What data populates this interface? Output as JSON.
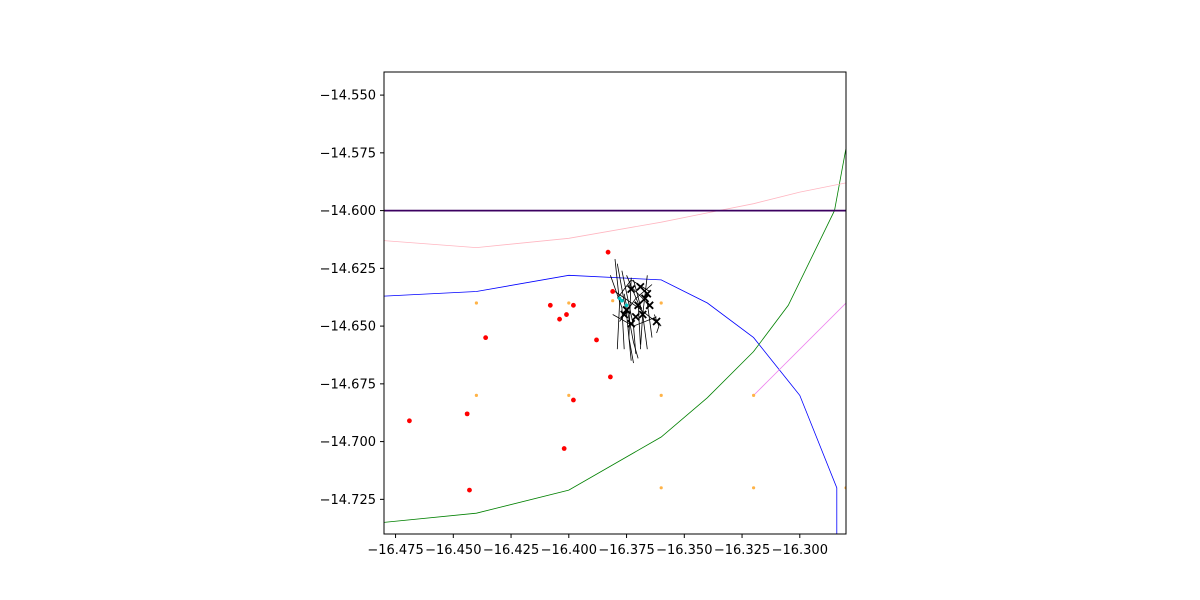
{
  "chart_data": {
    "type": "scatter",
    "title": "",
    "xlabel": "",
    "ylabel": "",
    "xlim": [
      -16.48,
      -16.28
    ],
    "ylim": [
      -14.74,
      -14.54
    ],
    "grid": false,
    "x_ticks": [
      -16.475,
      -16.45,
      -16.425,
      -16.4,
      -16.375,
      -16.35,
      -16.325,
      -16.3
    ],
    "x_tick_labels": [
      "−16.475",
      "−16.450",
      "−16.425",
      "−16.400",
      "−16.375",
      "−16.350",
      "−16.325",
      "−16.300"
    ],
    "y_ticks": [
      -14.55,
      -14.575,
      -14.6,
      -14.625,
      -14.65,
      -14.675,
      -14.7,
      -14.725
    ],
    "y_tick_labels": [
      "−14.550",
      "−14.575",
      "−14.600",
      "−14.625",
      "−14.650",
      "−14.675",
      "−14.700",
      "−14.725"
    ],
    "lines": [
      {
        "color": "#0000ff",
        "points": [
          [
            -16.48,
            -14.637
          ],
          [
            -16.44,
            -14.635
          ],
          [
            -16.4,
            -14.628
          ],
          [
            -16.36,
            -14.63
          ],
          [
            -16.34,
            -14.64
          ],
          [
            -16.32,
            -14.655
          ],
          [
            -16.3,
            -14.68
          ],
          [
            -16.284,
            -14.72
          ],
          [
            -16.284,
            -14.74
          ]
        ]
      },
      {
        "color": "#008000",
        "points": [
          [
            -16.48,
            -14.735
          ],
          [
            -16.44,
            -14.731
          ],
          [
            -16.4,
            -14.721
          ],
          [
            -16.36,
            -14.698
          ],
          [
            -16.34,
            -14.681
          ],
          [
            -16.32,
            -14.661
          ],
          [
            -16.305,
            -14.641
          ],
          [
            -16.285,
            -14.6
          ],
          [
            -16.28,
            -14.573
          ]
        ]
      },
      {
        "color": "#ffb6c1",
        "points": [
          [
            -16.48,
            -14.613
          ],
          [
            -16.44,
            -14.616
          ],
          [
            -16.4,
            -14.612
          ],
          [
            -16.36,
            -14.605
          ],
          [
            -16.34,
            -14.601
          ],
          [
            -16.32,
            -14.597
          ],
          [
            -16.3,
            -14.592
          ],
          [
            -16.28,
            -14.588
          ]
        ]
      },
      {
        "color": "#3b0060",
        "points": [
          [
            -16.48,
            -14.6
          ],
          [
            -16.28,
            -14.6
          ]
        ]
      },
      {
        "color": "#ee82ee",
        "points": [
          [
            -16.32,
            -14.68
          ],
          [
            -16.28,
            -14.64
          ]
        ]
      },
      {
        "color": "#ee82ee",
        "points": [
          [
            -16.28,
            -14.6
          ],
          [
            -16.28,
            -14.64
          ]
        ]
      }
    ],
    "red_points": [
      [
        -16.383,
        -14.618
      ],
      [
        -16.381,
        -14.635
      ],
      [
        -16.408,
        -14.641
      ],
      [
        -16.398,
        -14.641
      ],
      [
        -16.404,
        -14.647
      ],
      [
        -16.401,
        -14.645
      ],
      [
        -16.436,
        -14.655
      ],
      [
        -16.388,
        -14.656
      ],
      [
        -16.382,
        -14.672
      ],
      [
        -16.398,
        -14.682
      ],
      [
        -16.469,
        -14.691
      ],
      [
        -16.444,
        -14.688
      ],
      [
        -16.402,
        -14.703
      ],
      [
        -16.443,
        -14.721
      ]
    ],
    "orange_points": [
      [
        -16.44,
        -14.64
      ],
      [
        -16.4,
        -14.64
      ],
      [
        -16.36,
        -14.64
      ],
      [
        -16.44,
        -14.68
      ],
      [
        -16.4,
        -14.68
      ],
      [
        -16.36,
        -14.68
      ],
      [
        -16.32,
        -14.68
      ],
      [
        -16.36,
        -14.72
      ],
      [
        -16.32,
        -14.72
      ],
      [
        -16.28,
        -14.72
      ],
      [
        -16.381,
        -14.639
      ]
    ],
    "cyan_points": [
      [
        -16.377,
        -14.639
      ],
      [
        -16.375,
        -14.641
      ],
      [
        -16.378,
        -14.638
      ]
    ],
    "x_markers": [
      [
        -16.373,
        -14.634
      ],
      [
        -16.369,
        -14.633
      ],
      [
        -16.367,
        -14.638
      ],
      [
        -16.375,
        -14.643
      ],
      [
        -16.371,
        -14.646
      ],
      [
        -16.365,
        -14.641
      ],
      [
        -16.362,
        -14.648
      ],
      [
        -16.37,
        -14.641
      ],
      [
        -16.368,
        -14.645
      ],
      [
        -16.373,
        -14.649
      ],
      [
        -16.376,
        -14.645
      ],
      [
        -16.366,
        -14.636
      ]
    ],
    "tracks": [
      [
        [
          -16.38,
          -14.621
        ],
        [
          -16.378,
          -14.64
        ],
        [
          -16.379,
          -14.66
        ]
      ],
      [
        [
          -16.379,
          -14.623
        ],
        [
          -16.375,
          -14.645
        ],
        [
          -16.373,
          -14.665
        ]
      ],
      [
        [
          -16.377,
          -14.626
        ],
        [
          -16.372,
          -14.65
        ],
        [
          -16.371,
          -14.662
        ]
      ],
      [
        [
          -16.375,
          -14.628
        ],
        [
          -16.37,
          -14.64
        ],
        [
          -16.369,
          -14.658
        ]
      ],
      [
        [
          -16.373,
          -14.629
        ],
        [
          -16.374,
          -14.655
        ],
        [
          -16.372,
          -14.666
        ]
      ],
      [
        [
          -16.372,
          -14.63
        ],
        [
          -16.368,
          -14.645
        ],
        [
          -16.366,
          -14.66
        ]
      ],
      [
        [
          -16.38,
          -14.635
        ],
        [
          -16.37,
          -14.642
        ],
        [
          -16.36,
          -14.65
        ]
      ],
      [
        [
          -16.378,
          -14.648
        ],
        [
          -16.371,
          -14.638
        ],
        [
          -16.364,
          -14.632
        ]
      ],
      [
        [
          -16.366,
          -14.628
        ],
        [
          -16.368,
          -14.645
        ],
        [
          -16.369,
          -14.66
        ]
      ],
      [
        [
          -16.382,
          -14.628
        ],
        [
          -16.377,
          -14.642
        ],
        [
          -16.376,
          -14.66
        ]
      ],
      [
        [
          -16.376,
          -14.636
        ],
        [
          -16.372,
          -14.657
        ],
        [
          -16.37,
          -14.664
        ]
      ],
      [
        [
          -16.374,
          -14.632
        ],
        [
          -16.366,
          -14.64
        ],
        [
          -16.364,
          -14.655
        ]
      ],
      [
        [
          -16.381,
          -14.645
        ],
        [
          -16.372,
          -14.65
        ],
        [
          -16.362,
          -14.646
        ]
      ],
      [
        [
          -16.379,
          -14.638
        ],
        [
          -16.373,
          -14.63
        ],
        [
          -16.365,
          -14.635
        ]
      ],
      [
        [
          -16.363,
          -14.645
        ],
        [
          -16.361,
          -14.65
        ],
        [
          -16.362,
          -14.653
        ]
      ]
    ]
  }
}
